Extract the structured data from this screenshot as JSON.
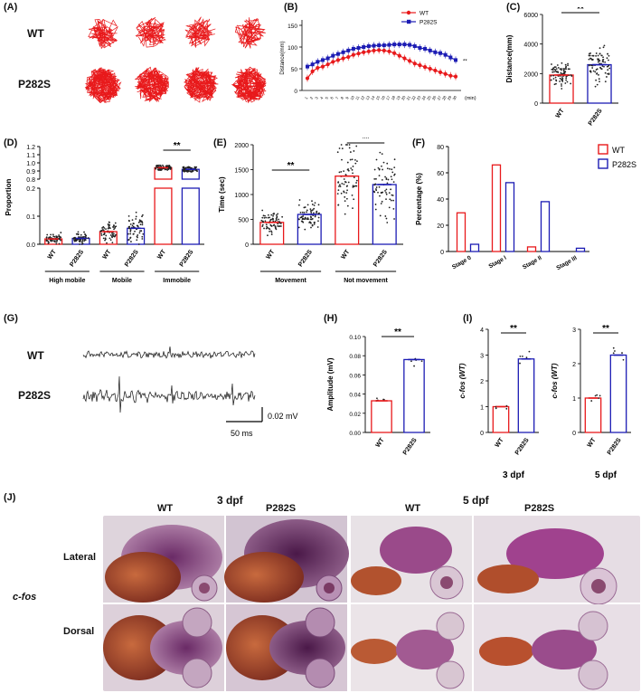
{
  "panels": {
    "A": "(A)",
    "B": "(B)",
    "C": "(C)",
    "D": "(D)",
    "E": "(E)",
    "F": "(F)",
    "G": "(G)",
    "H": "(H)",
    "I": "(I)",
    "J": "(J)"
  },
  "panel_a": {
    "row1": "WT",
    "row2": "P282S",
    "trace_color": "#e8191b"
  },
  "colors": {
    "wt": "#e8191b",
    "p282s": "#1c1cb4"
  },
  "significance": "**",
  "panel_g": {
    "row1": "WT",
    "row2": "P282S",
    "scale_y": "0.02 mV",
    "scale_x": "50 ms"
  },
  "panel_i": {
    "left_caption": "3 dpf",
    "right_caption": "5 dpf"
  },
  "panel_j": {
    "group1": "3 dpf",
    "group2": "5 dpf",
    "col_labels": [
      "WT",
      "P282S",
      "WT",
      "P282S"
    ],
    "row_labels": [
      "Lateral",
      "Dorsal"
    ],
    "gene": "c-fos"
  },
  "chart_data": [
    {
      "id": "B",
      "type": "line",
      "ylabel": "Distance(mm)",
      "xlabel": "(min)",
      "x": [
        1,
        2,
        3,
        4,
        5,
        6,
        7,
        8,
        9,
        10,
        11,
        12,
        13,
        14,
        15,
        16,
        17,
        18,
        19,
        20,
        21,
        22,
        23,
        24,
        25,
        26,
        27,
        28,
        29,
        30
      ],
      "ylim": [
        0,
        150
      ],
      "yticks": [
        0,
        50,
        100,
        150
      ],
      "series": [
        {
          "name": "WT",
          "values": [
            28,
            44,
            52,
            55,
            60,
            66,
            70,
            74,
            77,
            82,
            85,
            88,
            90,
            92,
            93,
            92,
            90,
            86,
            80,
            74,
            68,
            62,
            58,
            54,
            50,
            46,
            42,
            38,
            34,
            32
          ]
        },
        {
          "name": "P282S",
          "values": [
            55,
            60,
            66,
            70,
            74,
            80,
            84,
            88,
            92,
            96,
            98,
            100,
            102,
            103,
            104,
            104,
            105,
            106,
            106,
            106,
            105,
            102,
            98,
            96,
            92,
            88,
            86,
            82,
            76,
            70
          ]
        }
      ],
      "annotation": "**"
    },
    {
      "id": "C",
      "type": "bar",
      "ylabel": "Distance(mm)",
      "categories": [
        "WT",
        "P282S"
      ],
      "values": [
        1900,
        2600
      ],
      "ylim": [
        0,
        6000
      ],
      "yticks": [
        0,
        2000,
        4000,
        6000
      ],
      "annotation": "**"
    },
    {
      "id": "D",
      "type": "bar",
      "ylabel": "Proportion",
      "categories": [
        "WT",
        "P282S",
        "WT",
        "P282S",
        "WT",
        "P282S"
      ],
      "groups": [
        "High mobile",
        "Mobile",
        "Immobile"
      ],
      "values": [
        0.019,
        0.021,
        0.045,
        0.057,
        0.94,
        0.92
      ],
      "yticks_lower": [
        0.0,
        0.1,
        0.2
      ],
      "yticks_upper": [
        0.8,
        0.9,
        1.0,
        1.1,
        1.2
      ],
      "annotation": "**"
    },
    {
      "id": "E",
      "type": "bar",
      "ylabel": "Time (sec)",
      "categories": [
        "WT",
        "P282S",
        "WT",
        "P282S"
      ],
      "groups": [
        "Movement",
        "Not movement"
      ],
      "values": [
        440,
        600,
        1370,
        1200
      ],
      "ylim": [
        0,
        2000
      ],
      "yticks": [
        0,
        500,
        1000,
        1500,
        2000
      ],
      "annotation": "**"
    },
    {
      "id": "F",
      "type": "bar",
      "ylabel": "Percentage (%)",
      "categories": [
        "Stage 0",
        "Stage I",
        "Stage II",
        "Stage III"
      ],
      "series": [
        {
          "name": "WT",
          "values": [
            29.5,
            66,
            3.5,
            0
          ]
        },
        {
          "name": "P282S",
          "values": [
            5.5,
            52.5,
            38,
            2.5
          ]
        }
      ],
      "ylim": [
        0,
        80
      ],
      "yticks": [
        0,
        20,
        40,
        60,
        80
      ],
      "legend": "top-right"
    },
    {
      "id": "H",
      "type": "bar",
      "ylabel": "Amplitude (mV)",
      "categories": [
        "WT",
        "P282S"
      ],
      "values": [
        0.033,
        0.076
      ],
      "ylim": [
        0,
        0.1
      ],
      "yticks": [
        "0.00",
        "0.02",
        "0.04",
        "0.06",
        "0.08",
        "0.10"
      ],
      "annotation": "**"
    },
    {
      "id": "I1",
      "type": "bar",
      "ylabel": "c-fos (WT)",
      "categories": [
        "WT",
        "P282S"
      ],
      "values": [
        1.0,
        2.85
      ],
      "ylim": [
        0,
        4
      ],
      "yticks": [
        0,
        1,
        2,
        3,
        4
      ],
      "annotation": "**"
    },
    {
      "id": "I2",
      "type": "bar",
      "ylabel": "c-fos (WT)",
      "categories": [
        "WT",
        "P282S"
      ],
      "values": [
        1.0,
        2.25
      ],
      "ylim": [
        0,
        3
      ],
      "yticks": [
        0,
        1,
        2,
        3
      ],
      "annotation": "**"
    }
  ]
}
